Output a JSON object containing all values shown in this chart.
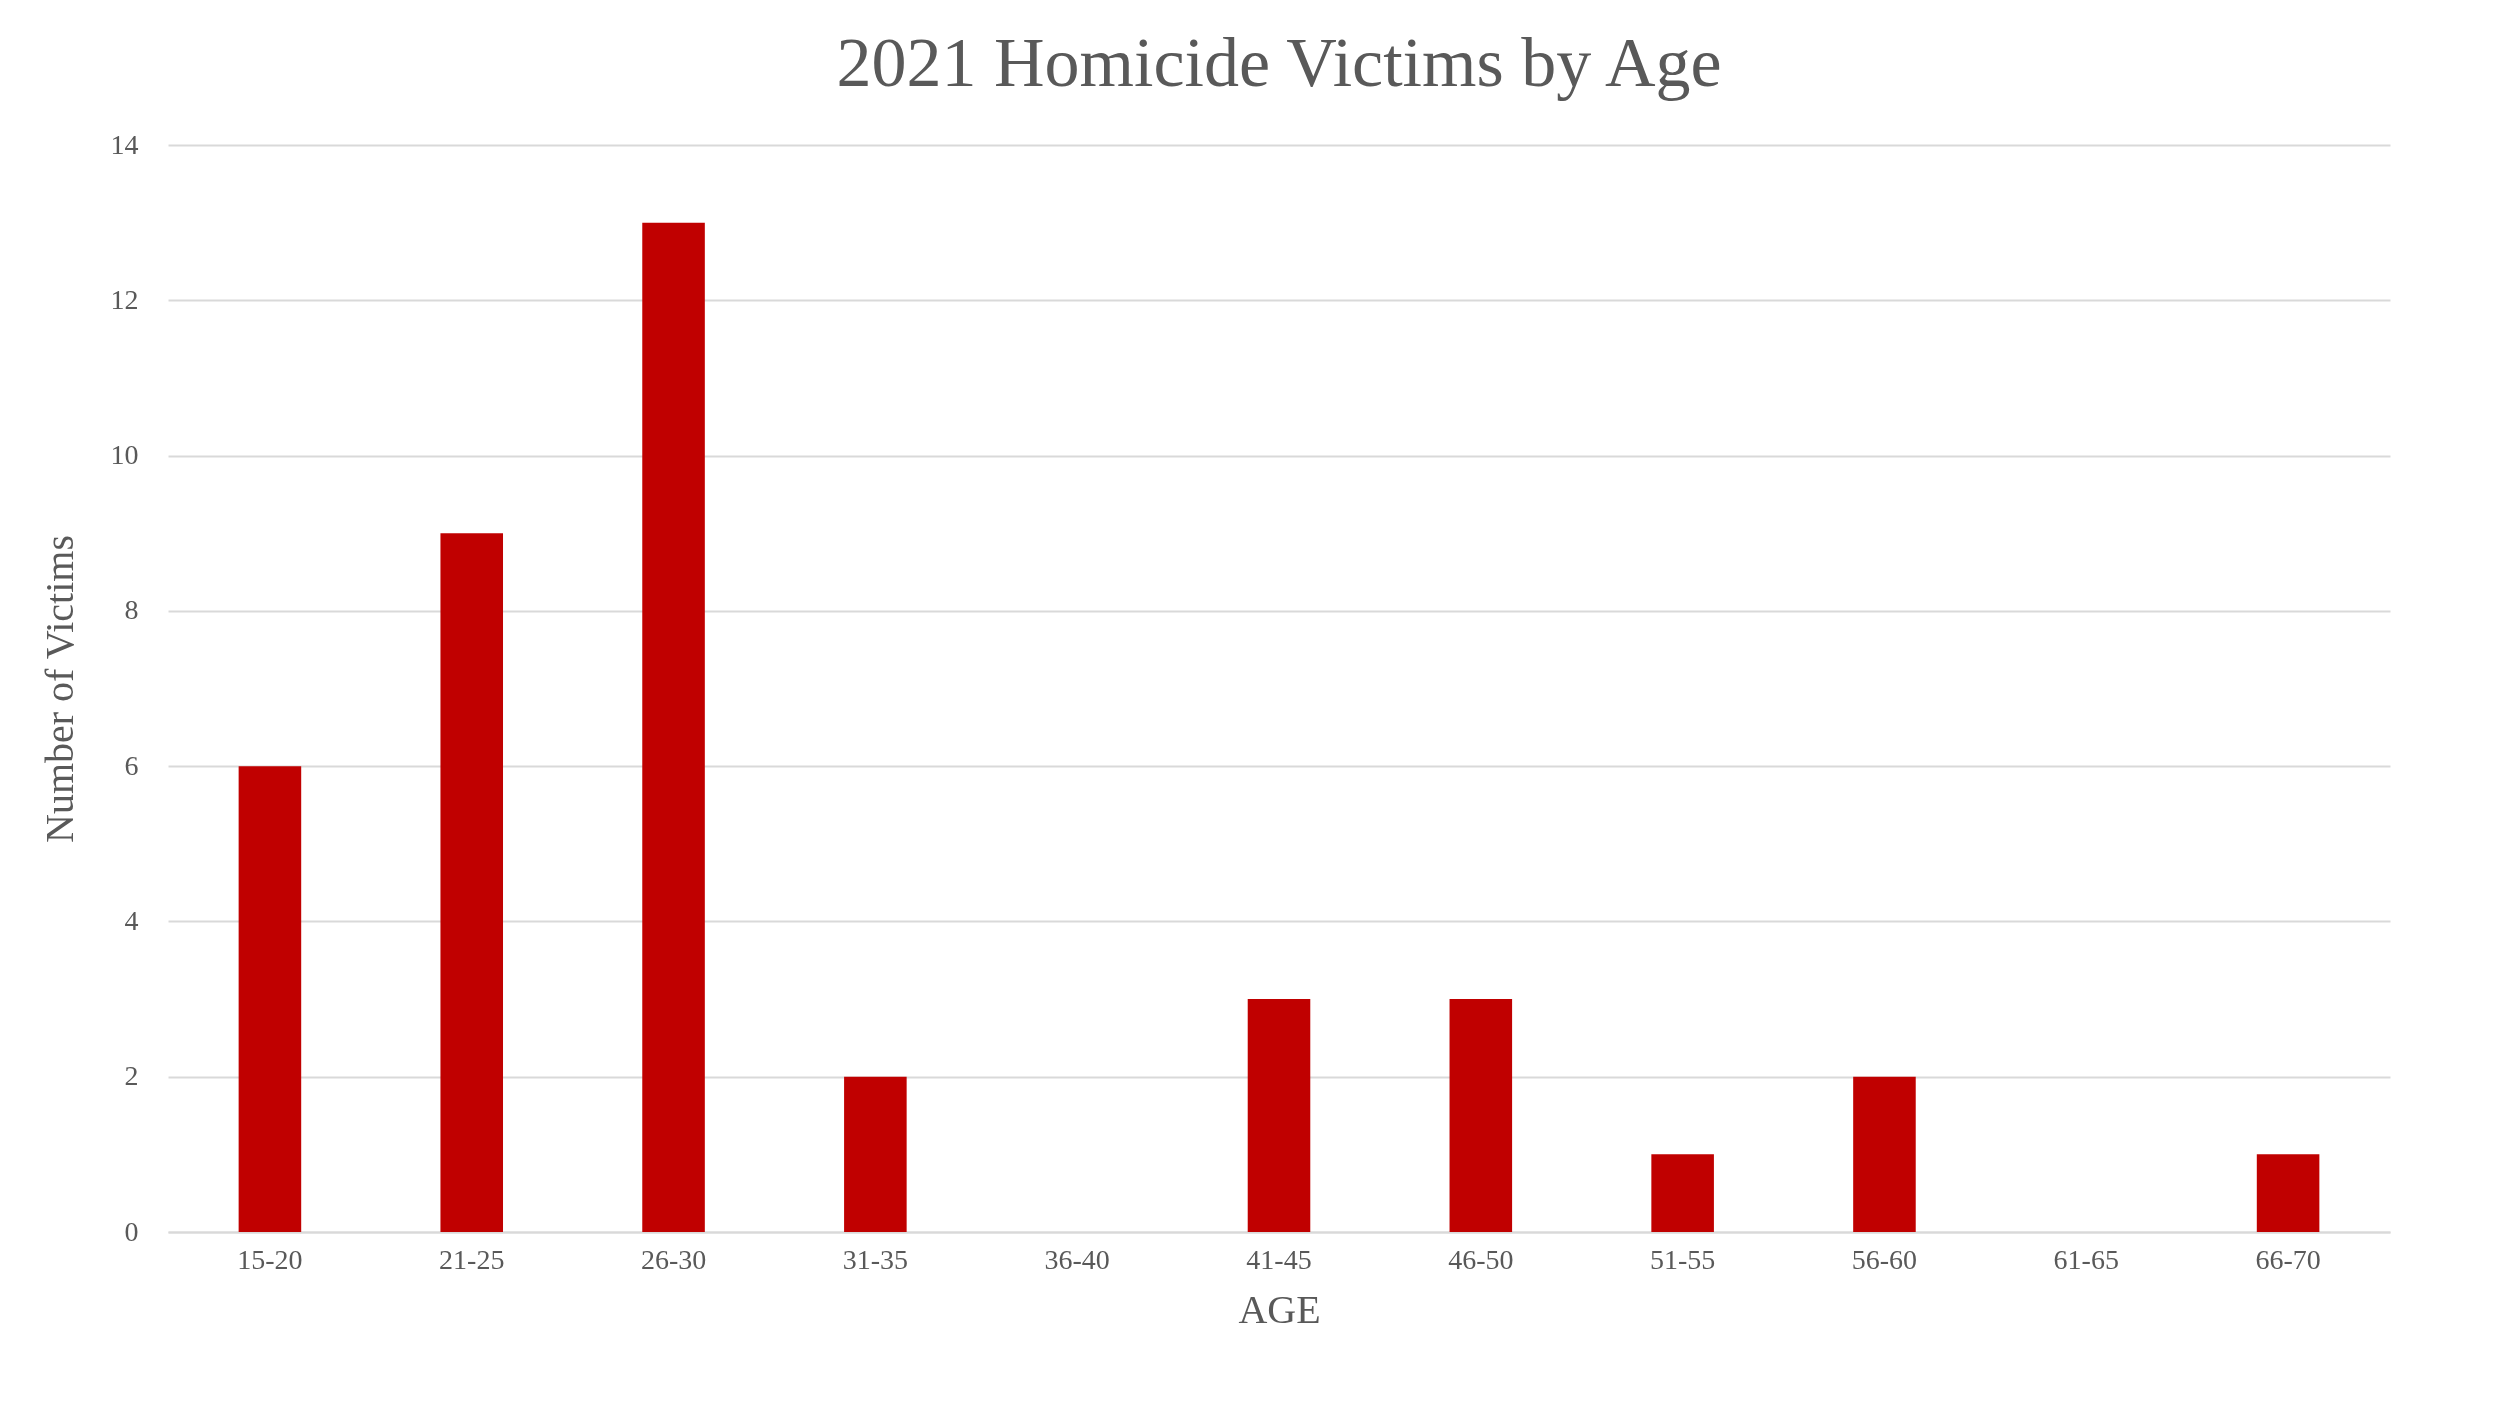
{
  "chart_data": {
    "type": "bar",
    "title": "2021 Homicide Victims by Age",
    "xlabel": "AGE",
    "ylabel": "Number of Victims",
    "categories": [
      "15-20",
      "21-25",
      "26-30",
      "31-35",
      "36-40",
      "41-45",
      "46-50",
      "51-55",
      "56-60",
      "61-65",
      "66-70"
    ],
    "series": [
      {
        "color": "#c00000",
        "values": [
          6,
          9,
          13,
          2,
          0,
          3,
          3,
          1,
          2,
          0,
          1
        ]
      }
    ],
    "ylim": [
      0,
      14
    ],
    "yticks": [
      0,
      2,
      4,
      6,
      8,
      10,
      12,
      14
    ],
    "grid": "y"
  }
}
